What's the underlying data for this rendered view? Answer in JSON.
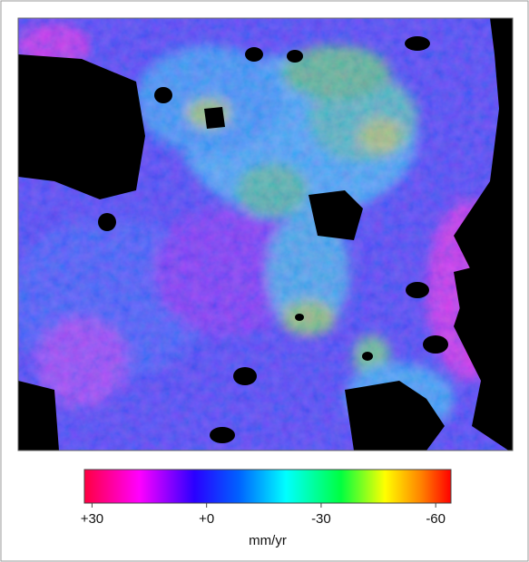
{
  "colorbar": {
    "range": [
      32,
      -64
    ],
    "ticks": [
      {
        "value": 30,
        "label": "+30"
      },
      {
        "value": 0,
        "label": "+0"
      },
      {
        "value": -30,
        "label": "-30"
      },
      {
        "value": -60,
        "label": "-60"
      }
    ],
    "unit": "mm/yr"
  }
}
